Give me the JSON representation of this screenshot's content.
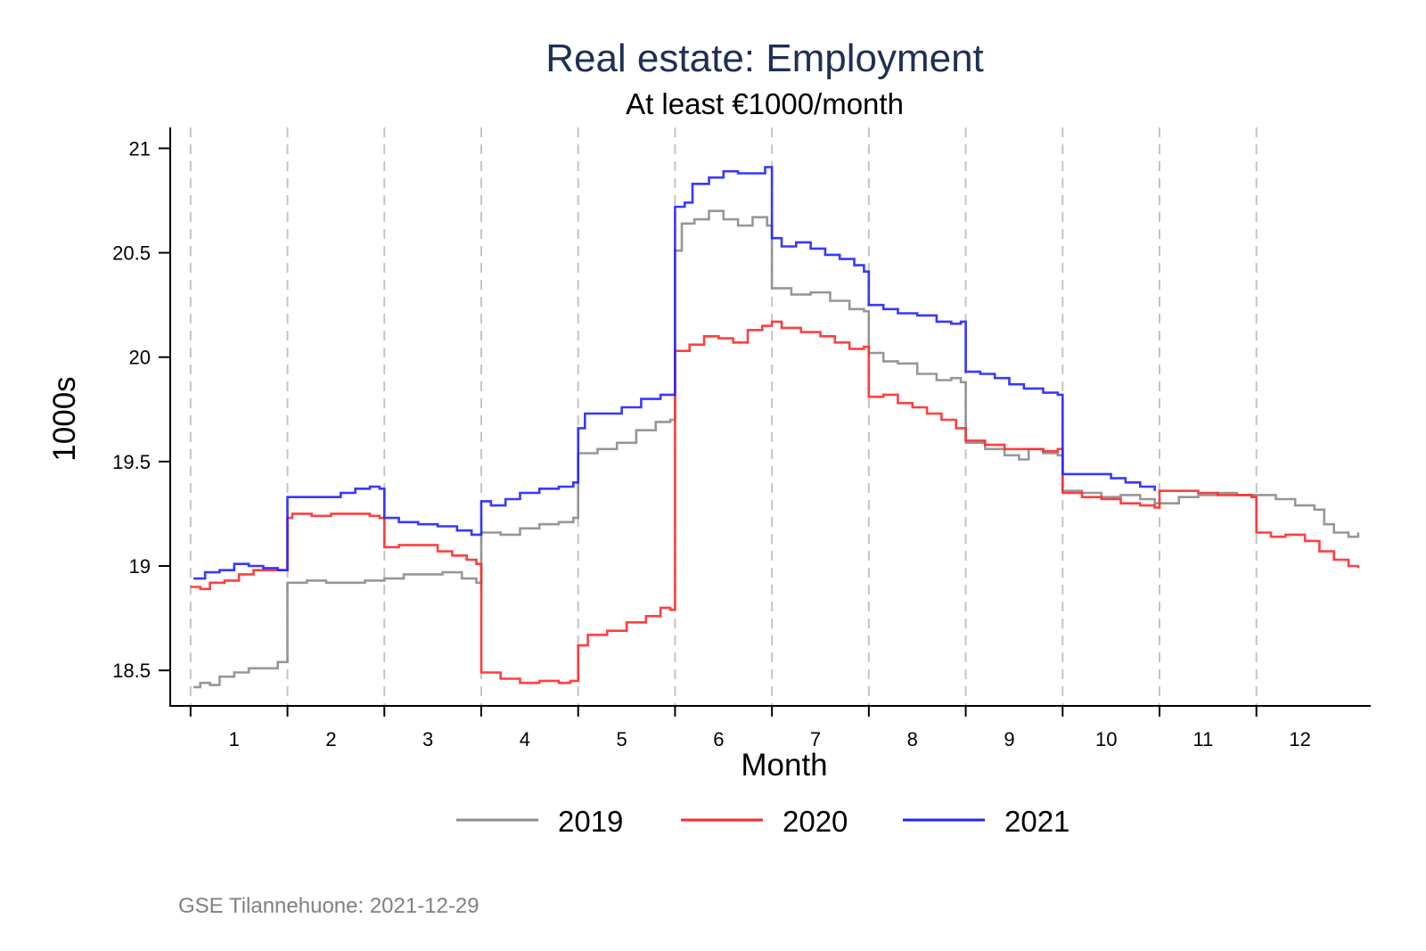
{
  "chart_data": {
    "type": "line",
    "step": true,
    "title": "Real estate: Employment",
    "subtitle": "At least €1000/month",
    "xlabel": "Month",
    "ylabel": "1000s",
    "ylim": [
      18.33,
      21.1
    ],
    "xlim": [
      0.79,
      13.18
    ],
    "yticks": [
      18.5,
      19,
      19.5,
      20,
      20.5,
      21
    ],
    "ytick_labels": [
      "18.5",
      "19",
      "19.5",
      "20",
      "20.5",
      "21"
    ],
    "xticks": [
      1,
      2,
      3,
      4,
      5,
      6,
      7,
      8,
      9,
      10,
      11,
      12
    ],
    "xtick_labels": [
      "1",
      "2",
      "3",
      "4",
      "5",
      "6",
      "7",
      "8",
      "9",
      "10",
      "11",
      "12"
    ],
    "month_boundaries": [
      1,
      2,
      3,
      4,
      5,
      6,
      7,
      8,
      9,
      10,
      11,
      12
    ],
    "grid": "vertical dashed at month boundaries",
    "legend_position": "bottom",
    "note": "GSE Tilannehuone: 2021-12-29",
    "series": [
      {
        "name": "2019",
        "color": "#8c8c8c",
        "points": [
          [
            1.03,
            18.42
          ],
          [
            1.1,
            18.44
          ],
          [
            1.2,
            18.43
          ],
          [
            1.3,
            18.47
          ],
          [
            1.45,
            18.49
          ],
          [
            1.6,
            18.51
          ],
          [
            1.75,
            18.51
          ],
          [
            1.9,
            18.54
          ],
          [
            2.0,
            18.92
          ],
          [
            2.2,
            18.93
          ],
          [
            2.4,
            18.92
          ],
          [
            2.6,
            18.92
          ],
          [
            2.8,
            18.93
          ],
          [
            3.0,
            18.94
          ],
          [
            3.2,
            18.96
          ],
          [
            3.4,
            18.96
          ],
          [
            3.6,
            18.97
          ],
          [
            3.8,
            18.94
          ],
          [
            3.95,
            18.92
          ],
          [
            4.0,
            19.16
          ],
          [
            4.2,
            19.15
          ],
          [
            4.4,
            19.18
          ],
          [
            4.6,
            19.2
          ],
          [
            4.8,
            19.21
          ],
          [
            4.95,
            19.23
          ],
          [
            5.0,
            19.54
          ],
          [
            5.2,
            19.56
          ],
          [
            5.4,
            19.59
          ],
          [
            5.6,
            19.65
          ],
          [
            5.8,
            19.69
          ],
          [
            5.95,
            19.7
          ],
          [
            6.0,
            20.51
          ],
          [
            6.07,
            20.64
          ],
          [
            6.2,
            20.66
          ],
          [
            6.35,
            20.7
          ],
          [
            6.5,
            20.66
          ],
          [
            6.65,
            20.63
          ],
          [
            6.8,
            20.67
          ],
          [
            6.95,
            20.63
          ],
          [
            7.0,
            20.33
          ],
          [
            7.2,
            20.3
          ],
          [
            7.4,
            20.31
          ],
          [
            7.6,
            20.27
          ],
          [
            7.8,
            20.23
          ],
          [
            7.95,
            20.22
          ],
          [
            8.0,
            20.02
          ],
          [
            8.15,
            19.98
          ],
          [
            8.3,
            19.97
          ],
          [
            8.5,
            19.92
          ],
          [
            8.7,
            19.89
          ],
          [
            8.85,
            19.9
          ],
          [
            8.95,
            19.88
          ],
          [
            9.0,
            19.59
          ],
          [
            9.2,
            19.56
          ],
          [
            9.4,
            19.53
          ],
          [
            9.55,
            19.51
          ],
          [
            9.65,
            19.56
          ],
          [
            9.8,
            19.54
          ],
          [
            9.95,
            19.53
          ],
          [
            10.0,
            19.36
          ],
          [
            10.2,
            19.35
          ],
          [
            10.4,
            19.33
          ],
          [
            10.6,
            19.34
          ],
          [
            10.8,
            19.32
          ],
          [
            10.95,
            19.3
          ],
          [
            11.0,
            19.3
          ],
          [
            11.2,
            19.33
          ],
          [
            11.4,
            19.34
          ],
          [
            11.6,
            19.35
          ],
          [
            11.8,
            19.34
          ],
          [
            11.95,
            19.34
          ],
          [
            12.0,
            19.34
          ],
          [
            12.2,
            19.32
          ],
          [
            12.4,
            19.29
          ],
          [
            12.6,
            19.27
          ],
          [
            12.7,
            19.2
          ],
          [
            12.8,
            19.16
          ],
          [
            12.95,
            19.14
          ],
          [
            13.05,
            19.16
          ]
        ]
      },
      {
        "name": "2020",
        "color": "#ff2a2a",
        "points": [
          [
            1.0,
            18.9
          ],
          [
            1.1,
            18.89
          ],
          [
            1.2,
            18.92
          ],
          [
            1.35,
            18.93
          ],
          [
            1.5,
            18.96
          ],
          [
            1.65,
            18.98
          ],
          [
            1.8,
            18.98
          ],
          [
            1.95,
            18.98
          ],
          [
            2.0,
            19.23
          ],
          [
            2.05,
            19.25
          ],
          [
            2.25,
            19.24
          ],
          [
            2.45,
            19.25
          ],
          [
            2.65,
            19.25
          ],
          [
            2.85,
            19.24
          ],
          [
            2.95,
            19.23
          ],
          [
            3.0,
            19.09
          ],
          [
            3.15,
            19.1
          ],
          [
            3.35,
            19.1
          ],
          [
            3.55,
            19.07
          ],
          [
            3.7,
            19.05
          ],
          [
            3.85,
            19.03
          ],
          [
            3.95,
            19.01
          ],
          [
            4.0,
            18.49
          ],
          [
            4.2,
            18.46
          ],
          [
            4.4,
            18.44
          ],
          [
            4.6,
            18.45
          ],
          [
            4.8,
            18.44
          ],
          [
            4.92,
            18.45
          ],
          [
            5.0,
            18.62
          ],
          [
            5.1,
            18.67
          ],
          [
            5.3,
            18.69
          ],
          [
            5.5,
            18.73
          ],
          [
            5.7,
            18.76
          ],
          [
            5.85,
            18.8
          ],
          [
            5.95,
            18.79
          ],
          [
            6.0,
            20.03
          ],
          [
            6.15,
            20.06
          ],
          [
            6.3,
            20.1
          ],
          [
            6.45,
            20.09
          ],
          [
            6.6,
            20.07
          ],
          [
            6.75,
            20.13
          ],
          [
            6.9,
            20.15
          ],
          [
            7.0,
            20.17
          ],
          [
            7.1,
            20.14
          ],
          [
            7.3,
            20.12
          ],
          [
            7.5,
            20.1
          ],
          [
            7.65,
            20.07
          ],
          [
            7.8,
            20.04
          ],
          [
            7.95,
            20.05
          ],
          [
            8.0,
            19.81
          ],
          [
            8.15,
            19.82
          ],
          [
            8.3,
            19.78
          ],
          [
            8.45,
            19.76
          ],
          [
            8.6,
            19.73
          ],
          [
            8.75,
            19.7
          ],
          [
            8.9,
            19.66
          ],
          [
            9.0,
            19.6
          ],
          [
            9.2,
            19.58
          ],
          [
            9.4,
            19.56
          ],
          [
            9.6,
            19.56
          ],
          [
            9.8,
            19.55
          ],
          [
            9.95,
            19.56
          ],
          [
            10.0,
            19.35
          ],
          [
            10.2,
            19.33
          ],
          [
            10.4,
            19.32
          ],
          [
            10.6,
            19.3
          ],
          [
            10.8,
            19.29
          ],
          [
            10.95,
            19.28
          ],
          [
            11.0,
            19.36
          ],
          [
            11.2,
            19.36
          ],
          [
            11.4,
            19.35
          ],
          [
            11.6,
            19.34
          ],
          [
            11.8,
            19.34
          ],
          [
            11.95,
            19.33
          ],
          [
            12.0,
            19.16
          ],
          [
            12.15,
            19.14
          ],
          [
            12.3,
            19.15
          ],
          [
            12.5,
            19.12
          ],
          [
            12.65,
            19.07
          ],
          [
            12.8,
            19.03
          ],
          [
            12.95,
            19.0
          ],
          [
            13.05,
            18.99
          ]
        ]
      },
      {
        "name": "2021",
        "color": "#2222ff",
        "points": [
          [
            1.03,
            18.94
          ],
          [
            1.1,
            18.94
          ],
          [
            1.15,
            18.97
          ],
          [
            1.3,
            18.98
          ],
          [
            1.45,
            19.01
          ],
          [
            1.6,
            19.0
          ],
          [
            1.75,
            18.99
          ],
          [
            1.9,
            18.98
          ],
          [
            2.0,
            19.33
          ],
          [
            2.2,
            19.33
          ],
          [
            2.4,
            19.33
          ],
          [
            2.55,
            19.35
          ],
          [
            2.7,
            19.37
          ],
          [
            2.85,
            19.38
          ],
          [
            2.95,
            19.37
          ],
          [
            3.0,
            19.23
          ],
          [
            3.15,
            19.21
          ],
          [
            3.35,
            19.2
          ],
          [
            3.55,
            19.19
          ],
          [
            3.75,
            19.17
          ],
          [
            3.9,
            19.15
          ],
          [
            4.0,
            19.31
          ],
          [
            4.1,
            19.29
          ],
          [
            4.25,
            19.32
          ],
          [
            4.4,
            19.35
          ],
          [
            4.6,
            19.37
          ],
          [
            4.8,
            19.38
          ],
          [
            4.95,
            19.4
          ],
          [
            5.0,
            19.66
          ],
          [
            5.07,
            19.73
          ],
          [
            5.25,
            19.73
          ],
          [
            5.45,
            19.76
          ],
          [
            5.65,
            19.8
          ],
          [
            5.85,
            19.82
          ],
          [
            5.95,
            19.82
          ],
          [
            6.0,
            20.72
          ],
          [
            6.1,
            20.74
          ],
          [
            6.18,
            20.83
          ],
          [
            6.35,
            20.86
          ],
          [
            6.5,
            20.89
          ],
          [
            6.65,
            20.88
          ],
          [
            6.8,
            20.88
          ],
          [
            6.93,
            20.91
          ],
          [
            7.0,
            20.57
          ],
          [
            7.1,
            20.53
          ],
          [
            7.25,
            20.55
          ],
          [
            7.4,
            20.52
          ],
          [
            7.55,
            20.49
          ],
          [
            7.7,
            20.47
          ],
          [
            7.85,
            20.44
          ],
          [
            7.95,
            20.41
          ],
          [
            8.0,
            20.25
          ],
          [
            8.15,
            20.23
          ],
          [
            8.3,
            20.21
          ],
          [
            8.5,
            20.2
          ],
          [
            8.7,
            20.17
          ],
          [
            8.85,
            20.16
          ],
          [
            8.95,
            20.17
          ],
          [
            9.0,
            19.93
          ],
          [
            9.15,
            19.92
          ],
          [
            9.3,
            19.9
          ],
          [
            9.45,
            19.87
          ],
          [
            9.6,
            19.85
          ],
          [
            9.8,
            19.83
          ],
          [
            9.95,
            19.82
          ],
          [
            10.0,
            19.44
          ],
          [
            10.15,
            19.44
          ],
          [
            10.35,
            19.44
          ],
          [
            10.5,
            19.42
          ],
          [
            10.65,
            19.4
          ],
          [
            10.8,
            19.38
          ],
          [
            10.95,
            19.36
          ]
        ]
      }
    ]
  }
}
